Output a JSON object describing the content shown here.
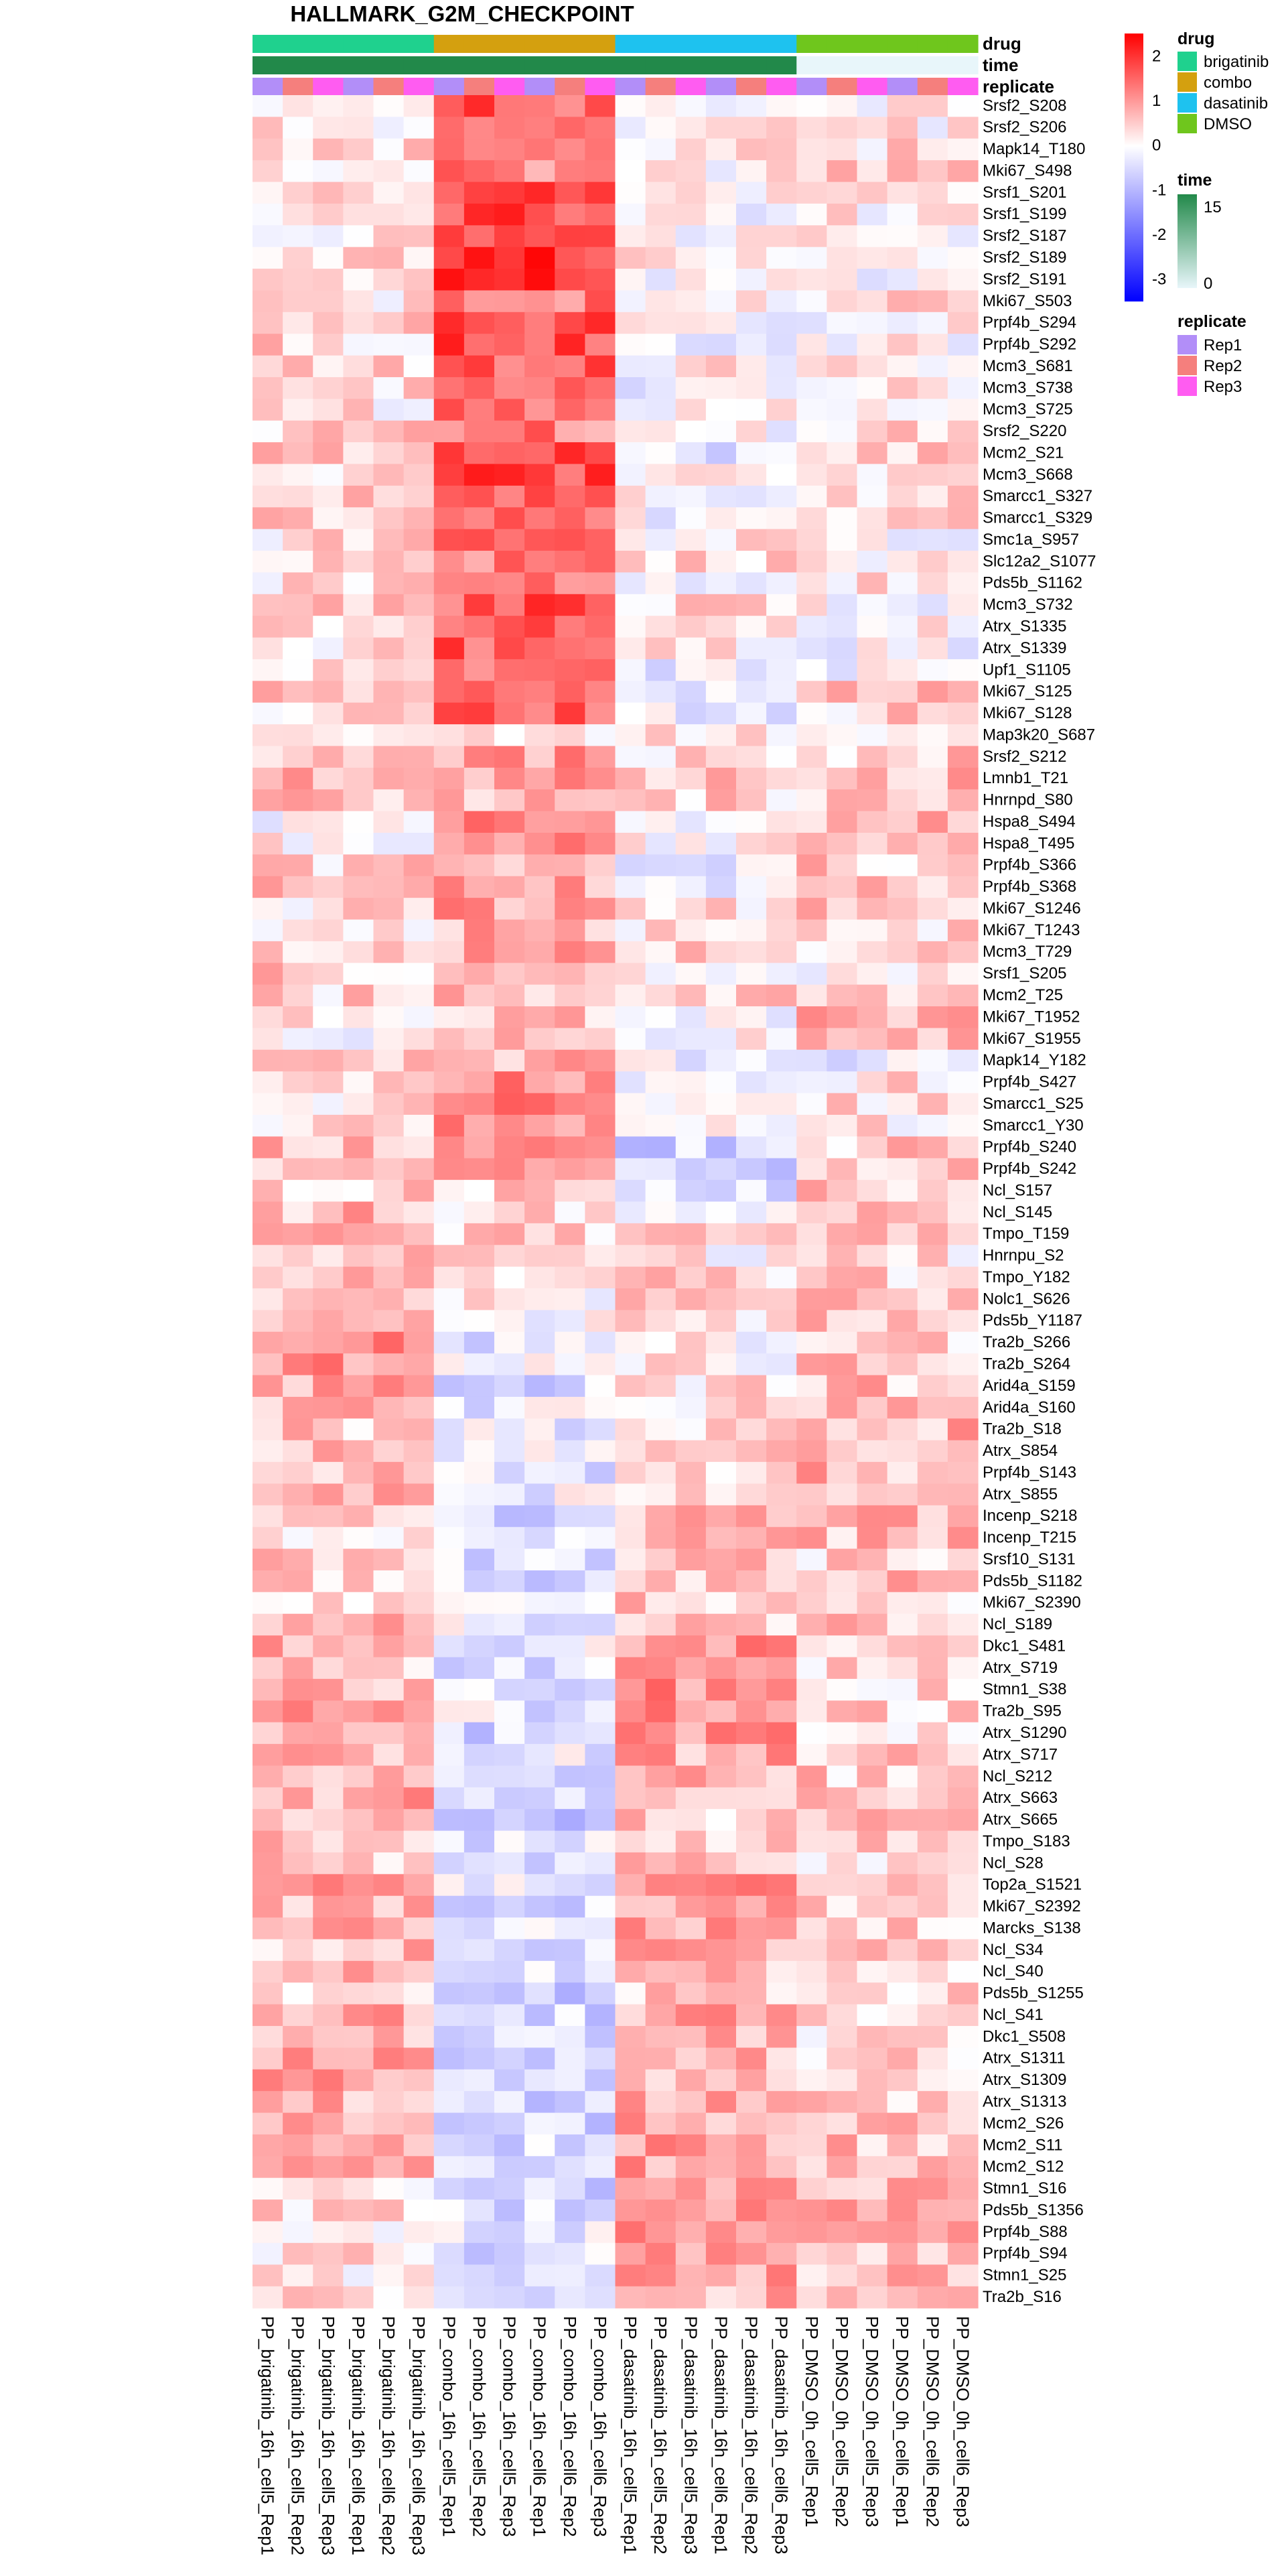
{
  "chart_data": {
    "type": "heatmap",
    "title": "HALLMARK_G2M_CHECKPOINT",
    "columns": [
      "PP_brigatinib_16h_cell5_Rep1",
      "PP_brigatinib_16h_cell5_Rep2",
      "PP_brigatinib_16h_cell5_Rep3",
      "PP_brigatinib_16h_cell6_Rep1",
      "PP_brigatinib_16h_cell6_Rep2",
      "PP_brigatinib_16h_cell6_Rep3",
      "PP_combo_16h_cell5_Rep1",
      "PP_combo_16h_cell5_Rep2",
      "PP_combo_16h_cell5_Rep3",
      "PP_combo_16h_cell6_Rep1",
      "PP_combo_16h_cell6_Rep2",
      "PP_combo_16h_cell6_Rep3",
      "PP_dasatinib_16h_cell5_Rep1",
      "PP_dasatinib_16h_cell5_Rep2",
      "PP_dasatinib_16h_cell5_Rep3",
      "PP_dasatinib_16h_cell6_Rep1",
      "PP_dasatinib_16h_cell6_Rep2",
      "PP_dasatinib_16h_cell6_Rep3",
      "PP_DMSO_0h_cell5_Rep1",
      "PP_DMSO_0h_cell5_Rep2",
      "PP_DMSO_0h_cell5_Rep3",
      "PP_DMSO_0h_cell6_Rep1",
      "PP_DMSO_0h_cell6_Rep2",
      "PP_DMSO_0h_cell6_Rep3"
    ],
    "rows": [
      "Srsf2_S208",
      "Srsf2_S206",
      "Mapk14_T180",
      "Mki67_S498",
      "Srsf1_S201",
      "Srsf1_S199",
      "Srsf2_S187",
      "Srsf2_S189",
      "Srsf2_S191",
      "Mki67_S503",
      "Prpf4b_S294",
      "Prpf4b_S292",
      "Mcm3_S681",
      "Mcm3_S738",
      "Mcm3_S725",
      "Srsf2_S220",
      "Mcm2_S21",
      "Mcm3_S668",
      "Smarcc1_S327",
      "Smarcc1_S329",
      "Smc1a_S957",
      "Slc12a2_S1077",
      "Pds5b_S1162",
      "Mcm3_S732",
      "Atrx_S1335",
      "Atrx_S1339",
      "Upf1_S1105",
      "Mki67_S125",
      "Mki67_S128",
      "Map3k20_S687",
      "Srsf2_S212",
      "Lmnb1_T21",
      "Hnrnpd_S80",
      "Hspa8_S494",
      "Hspa8_T495",
      "Prpf4b_S366",
      "Prpf4b_S368",
      "Mki67_S1246",
      "Mki67_T1243",
      "Mcm3_T729",
      "Srsf1_S205",
      "Mcm2_T25",
      "Mki67_T1952",
      "Mki67_S1955",
      "Mapk14_Y182",
      "Prpf4b_S427",
      "Smarcc1_S25",
      "Smarcc1_Y30",
      "Prpf4b_S240",
      "Prpf4b_S242",
      "Ncl_S157",
      "Ncl_S145",
      "Tmpo_T159",
      "Hnrnpu_S2",
      "Tmpo_Y182",
      "Nolc1_S626",
      "Pds5b_Y1187",
      "Tra2b_S266",
      "Tra2b_S264",
      "Arid4a_S159",
      "Arid4a_S160",
      "Tra2b_S18",
      "Atrx_S854",
      "Prpf4b_S143",
      "Atrx_S855",
      "Incenp_S218",
      "Incenp_T215",
      "Srsf10_S131",
      "Pds5b_S1182",
      "Mki67_S2390",
      "Ncl_S189",
      "Dkc1_S481",
      "Atrx_S719",
      "Stmn1_S38",
      "Tra2b_S95",
      "Atrx_S1290",
      "Atrx_S717",
      "Ncl_S212",
      "Atrx_S663",
      "Atrx_S665",
      "Tmpo_S183",
      "Ncl_S28",
      "Top2a_S1521",
      "Mki67_S2392",
      "Marcks_S138",
      "Ncl_S34",
      "Ncl_S40",
      "Pds5b_S1255",
      "Ncl_S41",
      "Dkc1_S508",
      "Atrx_S1311",
      "Atrx_S1309",
      "Atrx_S1313",
      "Mcm2_S26",
      "Mcm2_S11",
      "Mcm2_S12",
      "Stmn1_S16",
      "Pds5b_S1356",
      "Prpf4b_S88",
      "Prpf4b_S94",
      "Stmn1_S25",
      "Tra2b_S16"
    ],
    "annotations": {
      "labels": [
        "drug",
        "time",
        "replicate"
      ],
      "drug": [
        "brigatinib",
        "brigatinib",
        "brigatinib",
        "brigatinib",
        "brigatinib",
        "brigatinib",
        "combo",
        "combo",
        "combo",
        "combo",
        "combo",
        "combo",
        "dasatinib",
        "dasatinib",
        "dasatinib",
        "dasatinib",
        "dasatinib",
        "dasatinib",
        "DMSO",
        "DMSO",
        "DMSO",
        "DMSO",
        "DMSO",
        "DMSO"
      ],
      "time": [
        16,
        16,
        16,
        16,
        16,
        16,
        16,
        16,
        16,
        16,
        16,
        16,
        16,
        16,
        16,
        16,
        16,
        16,
        0,
        0,
        0,
        0,
        0,
        0
      ],
      "replicate": [
        "Rep1",
        "Rep2",
        "Rep3",
        "Rep1",
        "Rep2",
        "Rep3",
        "Rep1",
        "Rep2",
        "Rep3",
        "Rep1",
        "Rep2",
        "Rep3",
        "Rep1",
        "Rep2",
        "Rep3",
        "Rep1",
        "Rep2",
        "Rep3",
        "Rep1",
        "Rep2",
        "Rep3",
        "Rep1",
        "Rep2",
        "Rep3"
      ]
    },
    "group_patterns": {
      "brigatinib": [
        0.3,
        0.2,
        0.5,
        0.3,
        0.5,
        0.4,
        0.3,
        0.3,
        0.3,
        0.2,
        0.6,
        0.4,
        0.4,
        0.3,
        0.2,
        0.5,
        0.6,
        0.4,
        0.5,
        0.4,
        0.3,
        0.5,
        0.3,
        0.6,
        0.2,
        0.3,
        0.5,
        0.4,
        0.3,
        0.4,
        0.3,
        0.7,
        0.5,
        0.0,
        0.1,
        0.4,
        0.5,
        0.3,
        0.2,
        0.3,
        0.5,
        0.4,
        0.2,
        0.1,
        0.6,
        0.4,
        0.2,
        0.3,
        0.6,
        0.5,
        0.5,
        0.7,
        0.6,
        0.6,
        0.6,
        0.3,
        0.6,
        1.1,
        1.0,
        0.8,
        0.8,
        0.5,
        0.7,
        0.7,
        0.6,
        0.6,
        0.4,
        0.7,
        0.5,
        0.5,
        0.6,
        0.7,
        0.6,
        0.7,
        0.8,
        0.6,
        0.6,
        0.8,
        0.8,
        0.7,
        0.7,
        0.6,
        0.8,
        0.6,
        0.7,
        0.6,
        0.7,
        0.4,
        0.8,
        0.8,
        0.8,
        0.8,
        0.8,
        0.6,
        0.6,
        0.6,
        0.4,
        0.4,
        0.3,
        0.3,
        0.3,
        0.4
      ],
      "combo": [
        1.6,
        1.7,
        1.6,
        1.2,
        1.8,
        1.8,
        1.8,
        1.9,
        1.9,
        1.2,
        1.7,
        1.7,
        1.5,
        1.4,
        1.5,
        1.2,
        1.6,
        1.7,
        1.6,
        1.6,
        1.5,
        1.2,
        1.3,
        1.6,
        1.6,
        1.6,
        1.2,
        1.5,
        1.4,
        0.3,
        1.0,
        0.9,
        0.7,
        1.0,
        0.9,
        0.9,
        0.8,
        0.9,
        0.8,
        0.8,
        0.4,
        0.6,
        0.6,
        0.7,
        0.8,
        1.1,
        1.2,
        1.1,
        1.0,
        1.0,
        0.4,
        0.3,
        0.4,
        0.5,
        0.2,
        0.1,
        0.1,
        -0.3,
        -0.2,
        -0.5,
        -0.3,
        -0.3,
        -0.2,
        -0.4,
        -0.2,
        -0.5,
        -0.5,
        -0.5,
        -0.5,
        -0.4,
        -0.2,
        -0.2,
        -0.4,
        -0.3,
        -0.3,
        -0.6,
        -0.2,
        -0.4,
        -0.7,
        -0.8,
        -0.3,
        -0.4,
        -0.2,
        -0.5,
        -0.3,
        -0.5,
        -0.4,
        -0.7,
        -0.5,
        -0.6,
        -0.6,
        -0.7,
        -0.7,
        -0.6,
        -0.5,
        -0.4,
        -0.5,
        -0.5,
        -0.4,
        -0.5,
        -0.4,
        -0.5
      ],
      "dasatinib": [
        0.0,
        0.1,
        0.3,
        0.1,
        0.0,
        0.0,
        0.1,
        0.2,
        0.1,
        0.0,
        -0.1,
        0.0,
        0.2,
        -0.2,
        0.1,
        0.1,
        -0.3,
        0.0,
        0.0,
        0.0,
        0.2,
        0.4,
        0.1,
        0.4,
        0.1,
        0.1,
        -0.2,
        -0.4,
        -0.3,
        0.2,
        0.3,
        0.5,
        0.4,
        0.1,
        0.1,
        -0.4,
        -0.3,
        0.3,
        0.2,
        0.4,
        0.3,
        0.4,
        0.0,
        0.0,
        -0.1,
        -0.1,
        0.1,
        0.2,
        -0.6,
        -0.7,
        -0.4,
        -0.3,
        0.3,
        0.1,
        0.4,
        0.5,
        0.4,
        0.1,
        0.2,
        0.3,
        0.3,
        0.4,
        0.4,
        0.3,
        0.4,
        0.7,
        0.6,
        0.7,
        0.6,
        0.6,
        0.5,
        1.0,
        0.9,
        1.1,
        1.0,
        1.1,
        0.8,
        0.7,
        0.6,
        0.5,
        0.5,
        0.7,
        0.9,
        0.9,
        0.8,
        0.7,
        0.7,
        0.5,
        0.8,
        0.8,
        0.7,
        0.7,
        0.7,
        0.9,
        0.9,
        0.9,
        0.8,
        0.9,
        0.9,
        0.8,
        0.8,
        0.7
      ],
      "DMSO": [
        0.1,
        0.2,
        0.3,
        0.5,
        0.1,
        0.1,
        0.0,
        0.0,
        0.0,
        0.3,
        0.1,
        0.1,
        0.1,
        0.3,
        0.3,
        0.3,
        0.4,
        0.2,
        0.3,
        0.3,
        0.0,
        0.1,
        0.3,
        0.0,
        0.0,
        0.0,
        -0.1,
        0.5,
        0.4,
        0.4,
        0.5,
        0.6,
        0.4,
        0.6,
        0.6,
        0.5,
        0.6,
        0.5,
        0.4,
        0.4,
        0.2,
        0.3,
        0.8,
        0.7,
        -0.3,
        0.3,
        0.3,
        0.2,
        0.5,
        0.5,
        0.5,
        0.5,
        0.5,
        0.3,
        0.4,
        0.5,
        0.7,
        0.4,
        0.5,
        0.6,
        0.6,
        0.7,
        0.5,
        0.7,
        0.6,
        0.7,
        0.6,
        0.4,
        0.6,
        0.4,
        0.6,
        0.3,
        0.4,
        0.4,
        0.4,
        0.4,
        0.5,
        0.5,
        0.6,
        0.5,
        0.5,
        0.4,
        0.5,
        0.5,
        0.4,
        0.4,
        0.5,
        0.4,
        0.4,
        0.3,
        0.5,
        0.5,
        0.5,
        0.6,
        0.6,
        0.6,
        0.6,
        0.7,
        0.7,
        0.6,
        0.6,
        0.7
      ]
    },
    "color_scale": {
      "low": "#0000ff",
      "mid": "#ffffff",
      "high": "#ff0000",
      "domain": [
        -3.5,
        0,
        2.5
      ]
    },
    "colors": {
      "drug": {
        "brigatinib": "#1fd18e",
        "combo": "#d4a00f",
        "dasatinib": "#1ec2ef",
        "DMSO": "#6fc61d"
      },
      "time": {
        "low": "#e8f6fa",
        "high": "#22894a"
      },
      "replicate": {
        "Rep1": "#b28ef8",
        "Rep2": "#f57f7d",
        "Rep3": "#ff5cf1"
      }
    },
    "legend_placement": "right",
    "legends": [
      {
        "title": "",
        "type": "continuous",
        "ticks": [
          2,
          1,
          0,
          -1,
          -2,
          -3
        ]
      },
      {
        "title": "drug",
        "type": "discrete",
        "keys": [
          "brigatinib",
          "combo",
          "dasatinib",
          "DMSO"
        ]
      },
      {
        "title": "time",
        "type": "continuous",
        "ticks": [
          15,
          0
        ]
      },
      {
        "title": "replicate",
        "type": "discrete",
        "keys": [
          "Rep1",
          "Rep2",
          "Rep3"
        ]
      }
    ]
  }
}
